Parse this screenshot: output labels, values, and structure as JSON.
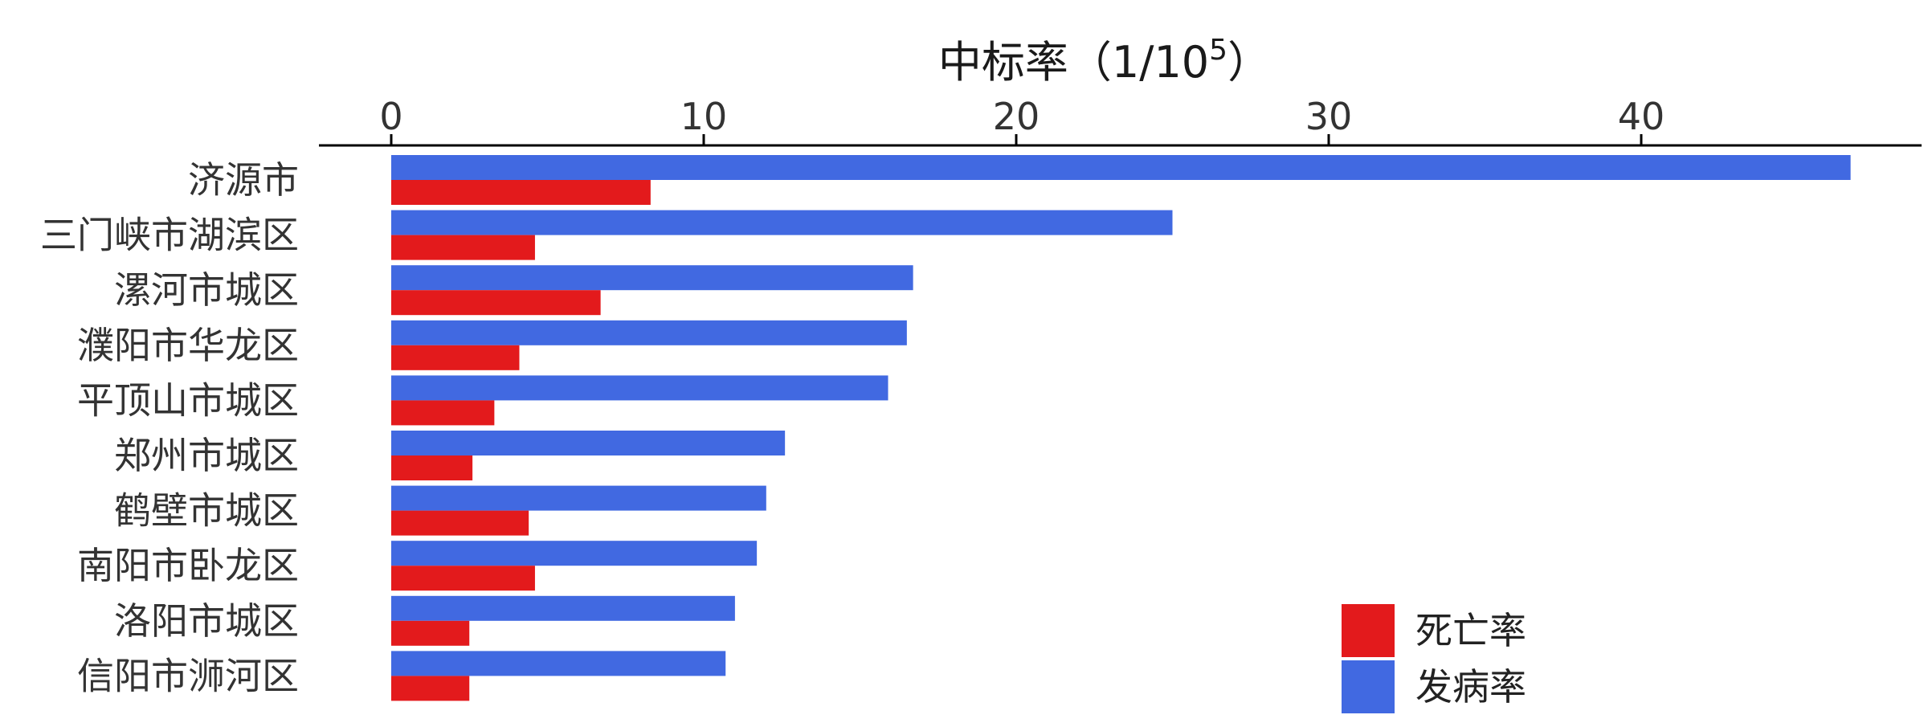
{
  "chart_data": {
    "type": "bar",
    "orientation": "horizontal",
    "xlabel": "中标率（1/10",
    "xlabel_superscript": "5",
    "xlabel_suffix": "）",
    "axis_position": "top",
    "xlim": [
      0,
      48
    ],
    "xticks": [
      0,
      10,
      20,
      30,
      40
    ],
    "grid": false,
    "legend_position": "bottom-right",
    "categories": [
      "济源市",
      "三门峡市湖滨区",
      "漯河市城区",
      "濮阳市华龙区",
      "平顶山市城区",
      "郑州市城区",
      "鹤壁市城区",
      "南阳市卧龙区",
      "洛阳市城区",
      "信阳市浉河区"
    ],
    "series": [
      {
        "name": "发病率",
        "color": "#4169e1",
        "values": [
          46.7,
          25.0,
          16.7,
          16.5,
          15.9,
          12.6,
          12.0,
          11.7,
          11.0,
          10.7
        ]
      },
      {
        "name": "死亡率",
        "color": "#e31a1c",
        "values": [
          8.3,
          4.6,
          6.7,
          4.1,
          3.3,
          2.6,
          4.4,
          4.6,
          2.5,
          2.5
        ]
      }
    ],
    "legend_order": [
      "死亡率",
      "发病率"
    ]
  }
}
